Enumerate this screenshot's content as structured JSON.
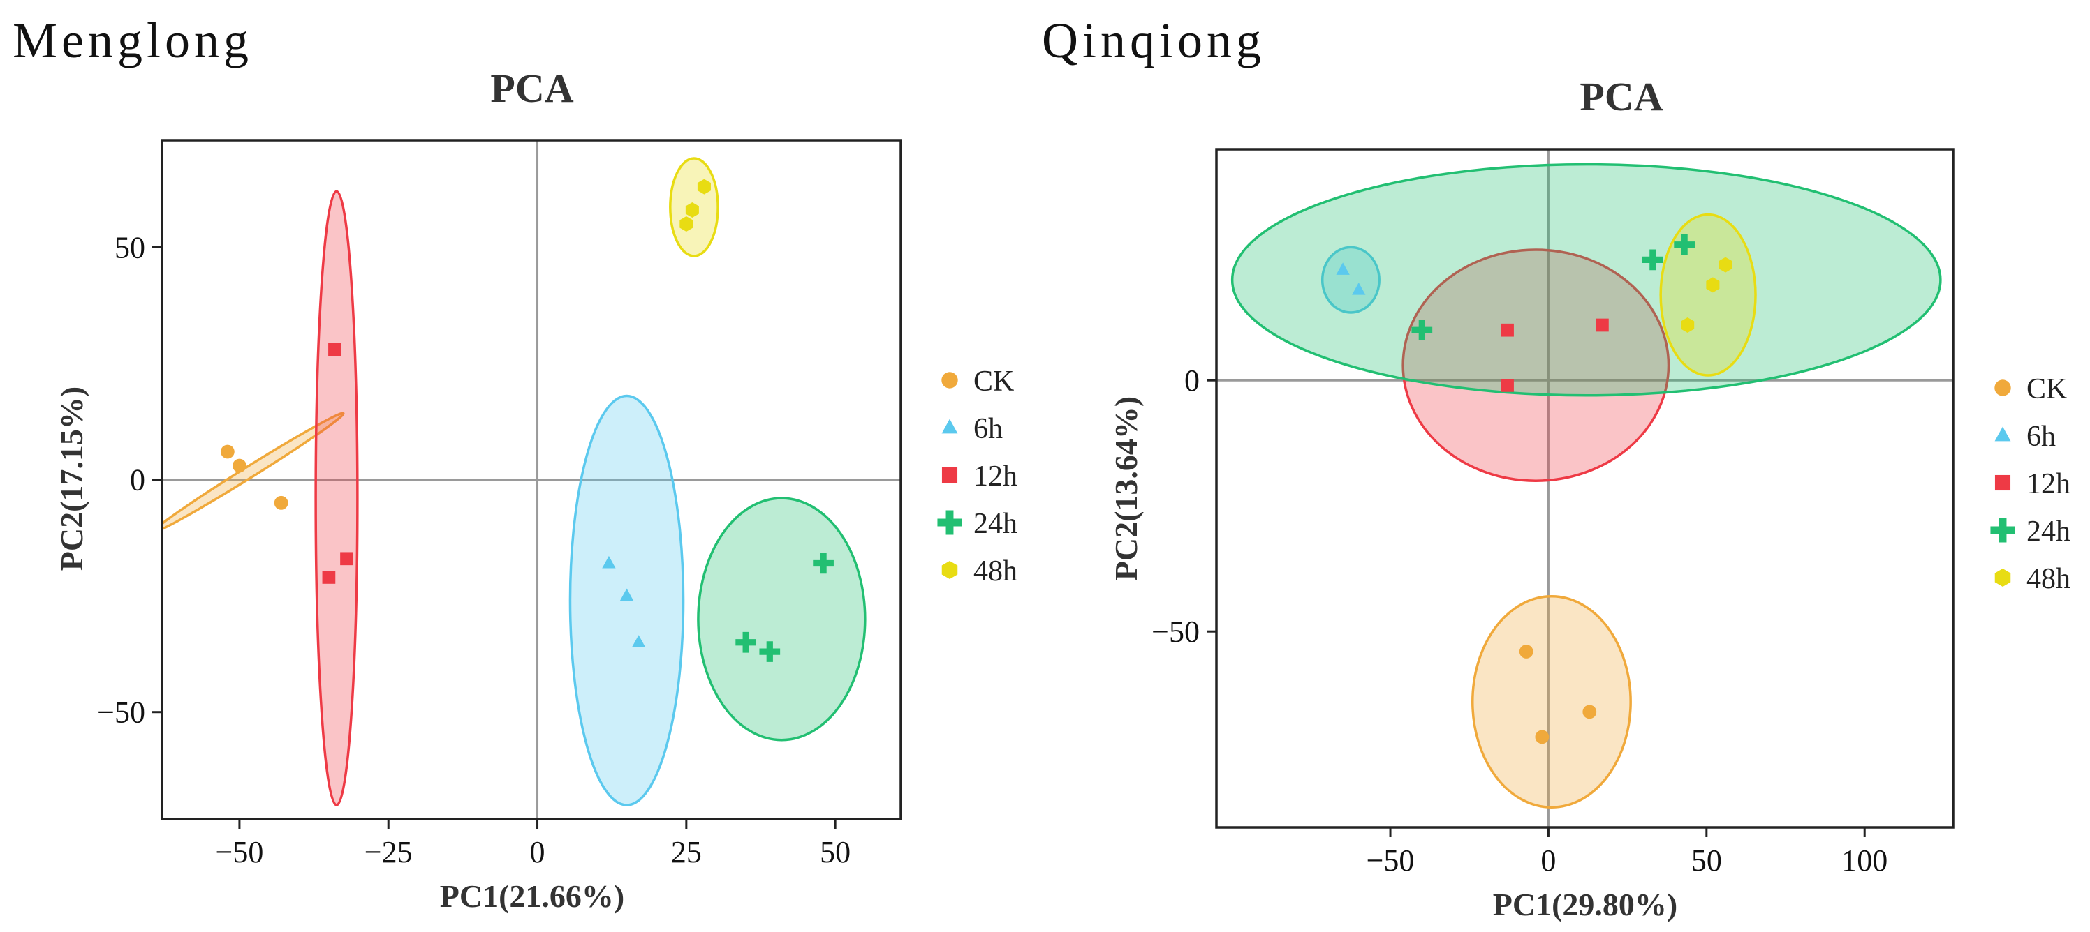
{
  "panels": [
    {
      "name": "Menglong"
    },
    {
      "name": "Qinqiong"
    }
  ],
  "legend": [
    {
      "label": "CK",
      "color": "#F0A93B",
      "shape": "circle"
    },
    {
      "label": "6h",
      "color": "#5BC9EE",
      "shape": "triangle"
    },
    {
      "label": "12h",
      "color": "#EE3A45",
      "shape": "square"
    },
    {
      "label": "24h",
      "color": "#22BF72",
      "shape": "cross"
    },
    {
      "label": "48h",
      "color": "#E8DC13",
      "shape": "hexagon"
    }
  ],
  "chart_data": [
    {
      "type": "scatter",
      "title": "PCA",
      "xlabel": "PC1(21.66%)",
      "ylabel": "PC2(17.15%)",
      "xlim": [
        -63,
        61
      ],
      "ylim": [
        -73,
        73
      ],
      "xticks": [
        -50,
        -25,
        0,
        25,
        50
      ],
      "yticks": [
        -50,
        0,
        50
      ],
      "xtick_labels": [
        "−50",
        "−25",
        "0",
        "25",
        "50"
      ],
      "ytick_labels": [
        "−50",
        "0",
        "50"
      ],
      "series": [
        {
          "name": "CK",
          "points": [
            [
              -52,
              6
            ],
            [
              -50,
              3
            ],
            [
              -43,
              -5
            ]
          ],
          "ellipse": {
            "cx": -48.5,
            "cy": 1.5,
            "rx": 18.8,
            "ry": 1.2,
            "angle": -32
          }
        },
        {
          "name": "6h",
          "points": [
            [
              12,
              -18
            ],
            [
              15,
              -25
            ],
            [
              17,
              -35
            ]
          ],
          "ellipse": {
            "cx": 15,
            "cy": -26,
            "rx": 9.5,
            "ry": 44,
            "angle": 0
          }
        },
        {
          "name": "12h",
          "points": [
            [
              -34,
              28
            ],
            [
              -32,
              -17
            ],
            [
              -35,
              -21
            ]
          ],
          "ellipse": {
            "cx": -33.7,
            "cy": -4,
            "rx": 3.5,
            "ry": 66,
            "angle": 0
          }
        },
        {
          "name": "24h",
          "points": [
            [
              48,
              -18
            ],
            [
              35,
              -35
            ],
            [
              39,
              -37
            ]
          ],
          "ellipse": {
            "cx": 41,
            "cy": -30,
            "rx": 14,
            "ry": 26,
            "angle": 0
          }
        },
        {
          "name": "48h",
          "points": [
            [
              25,
              55
            ],
            [
              26,
              58
            ],
            [
              28,
              63
            ]
          ],
          "ellipse": {
            "cx": 26.3,
            "cy": 58.6,
            "rx": 4,
            "ry": 10.5,
            "angle": 0
          }
        }
      ]
    },
    {
      "type": "scatter",
      "title": "PCA",
      "xlabel": "PC1(29.80%)",
      "ylabel": "PC2(13.64%)",
      "xlim": [
        -105,
        128
      ],
      "ylim": [
        -89,
        46
      ],
      "xticks": [
        -50,
        0,
        50,
        100
      ],
      "yticks": [
        -50,
        0
      ],
      "xtick_labels": [
        "−50",
        "0",
        "50",
        "100"
      ],
      "ytick_labels": [
        "−50",
        "0"
      ],
      "series": [
        {
          "name": "CK",
          "points": [
            [
              -7,
              -54
            ],
            [
              -2,
              -71
            ],
            [
              13,
              -66
            ]
          ],
          "ellipse": {
            "cx": 1,
            "cy": -64,
            "rx": 25,
            "ry": 21,
            "angle": 0
          }
        },
        {
          "name": "6h",
          "points": [
            [
              -65,
              22
            ],
            [
              -60,
              18
            ]
          ],
          "ellipse": {
            "cx": -62.5,
            "cy": 20,
            "rx": 9,
            "ry": 6.5,
            "angle": 0
          }
        },
        {
          "name": "12h",
          "points": [
            [
              -13,
              10
            ],
            [
              -13,
              -1
            ],
            [
              17,
              11
            ]
          ],
          "ellipse": {
            "cx": -4,
            "cy": 3,
            "rx": 42,
            "ry": 23,
            "angle": 0
          }
        },
        {
          "name": "24h",
          "points": [
            [
              -40,
              10
            ],
            [
              33,
              24
            ],
            [
              43,
              27
            ]
          ],
          "ellipse": {
            "cx": 12,
            "cy": 20,
            "rx": 112,
            "ry": 23,
            "angle": 0
          }
        },
        {
          "name": "48h",
          "points": [
            [
              44,
              11
            ],
            [
              52,
              19
            ],
            [
              56,
              23
            ]
          ],
          "ellipse": {
            "cx": 50.5,
            "cy": 17,
            "rx": 15,
            "ry": 16,
            "angle": 0
          }
        }
      ]
    }
  ]
}
